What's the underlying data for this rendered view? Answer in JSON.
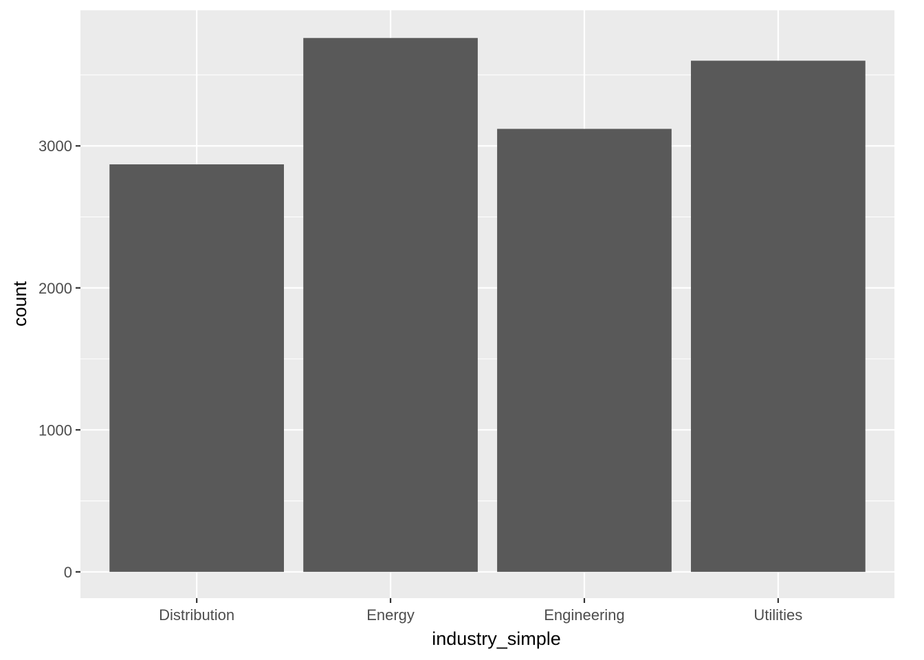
{
  "chart_data": {
    "type": "bar",
    "categories": [
      "Distribution",
      "Energy",
      "Engineering",
      "Utilities"
    ],
    "values": [
      2870,
      3760,
      3120,
      3600
    ],
    "xlabel": "industry_simple",
    "ylabel": "count",
    "ylim": [
      -185,
      3955
    ],
    "yticks": [
      0,
      1000,
      2000,
      3000
    ],
    "ytick_labels": [
      "0",
      "1000",
      "2000",
      "3000"
    ],
    "y_minor_ticks": [
      500,
      1500,
      2500,
      3500
    ],
    "grid": true,
    "legend": "none",
    "colors": {
      "panel_background": "#ebebeb",
      "grid_line": "#ffffff",
      "bar_fill": "#595959",
      "tick_mark": "#333333",
      "tick_text": "#4d4d4d",
      "title_text": "#000000"
    }
  }
}
